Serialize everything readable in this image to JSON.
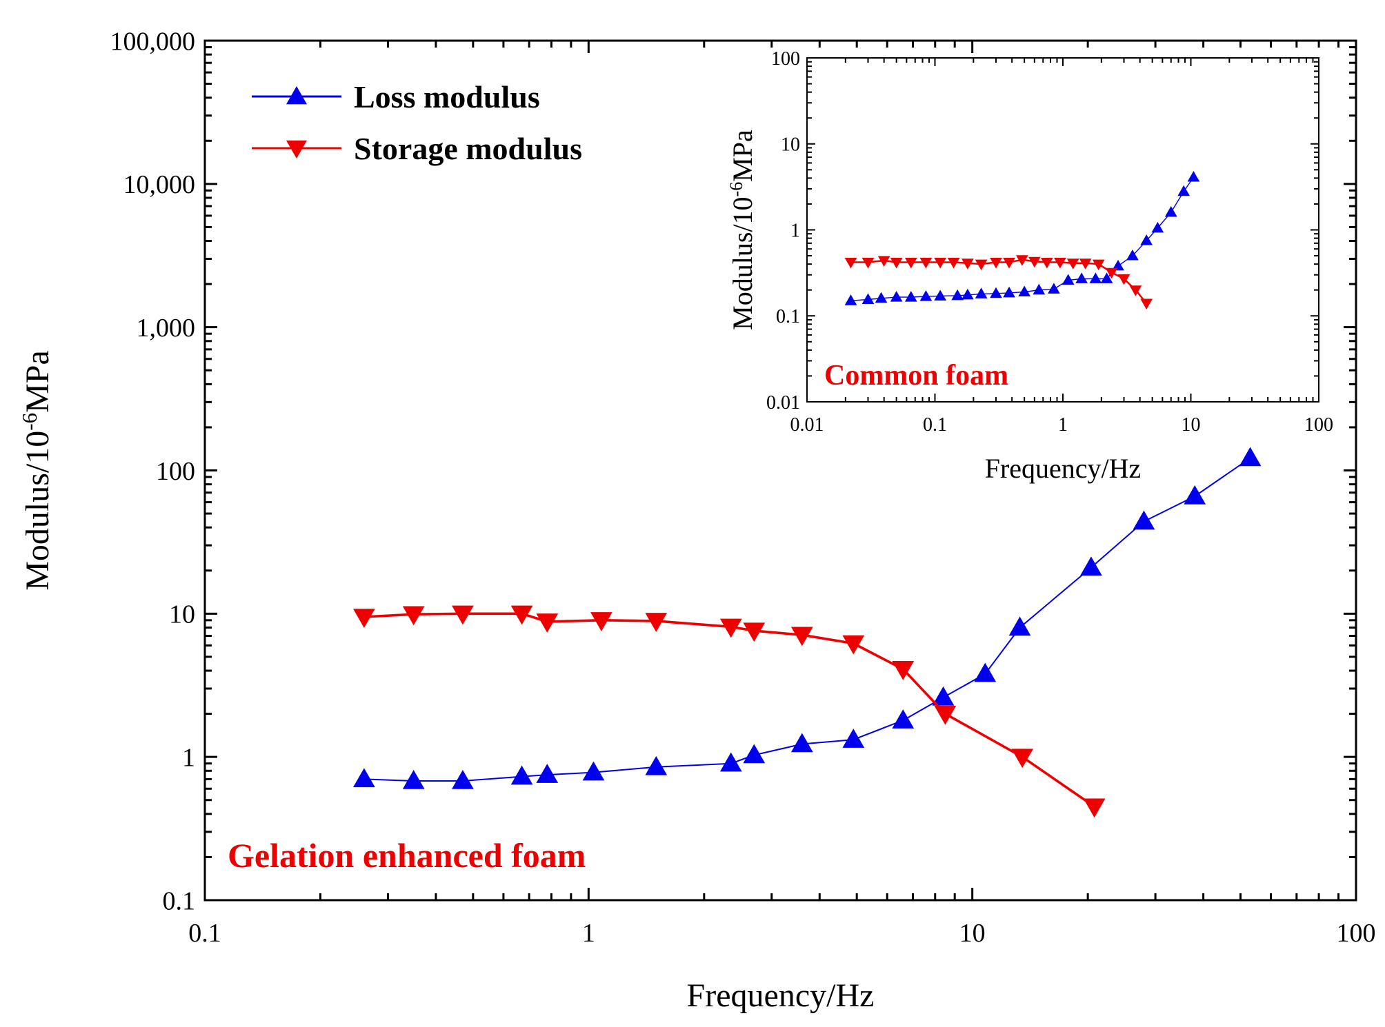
{
  "chart_data": [
    {
      "type": "line",
      "xlabel": "Frequency/Hz",
      "ylabel_main": "Modulus/10",
      "ylabel_sup": "-6",
      "ylabel_unit": "MPa",
      "xscale": "log",
      "yscale": "log",
      "xlim": [
        0.1,
        100
      ],
      "ylim": [
        0.1,
        100000
      ],
      "x_ticks": [
        0.1,
        1,
        10,
        100
      ],
      "x_tick_labels": [
        "0.1",
        "1",
        "10",
        "100"
      ],
      "y_ticks": [
        0.1,
        1,
        10,
        100,
        1000,
        10000,
        100000
      ],
      "y_tick_labels": [
        "0.1",
        "1",
        "10",
        "100",
        "1,000",
        "10,000",
        "100,000"
      ],
      "annotation": "Gelation enhanced foam",
      "legend_position": "top-left",
      "grid": false,
      "series": [
        {
          "name": "Loss modulus",
          "color": "#0000ee",
          "marker": "triangle-up",
          "x": [
            0.26,
            0.35,
            0.47,
            0.67,
            0.78,
            1.03,
            1.5,
            2.35,
            2.7,
            3.6,
            4.9,
            6.6,
            8.4,
            10.8,
            13.3,
            20.4,
            28.0,
            38.0,
            53.0
          ],
          "y": [
            0.7,
            0.68,
            0.68,
            0.73,
            0.75,
            0.78,
            0.85,
            0.9,
            1.03,
            1.23,
            1.32,
            1.8,
            2.6,
            3.8,
            8.0,
            21.0,
            44.0,
            66.0,
            122.0
          ]
        },
        {
          "name": "Storage modulus",
          "color": "#ee0000",
          "marker": "triangle-down",
          "x": [
            0.26,
            0.35,
            0.47,
            0.67,
            0.78,
            1.08,
            1.5,
            2.35,
            2.7,
            3.6,
            4.9,
            6.6,
            8.5,
            13.5,
            20.8
          ],
          "y": [
            9.5,
            9.9,
            10.0,
            10.0,
            8.8,
            9.0,
            8.9,
            8.1,
            7.6,
            7.1,
            6.2,
            4.1,
            2.0,
            1.0,
            0.45
          ]
        }
      ]
    },
    {
      "type": "line",
      "xlabel": "Frequency/Hz",
      "ylabel_main": "Modulus/10",
      "ylabel_sup": "-6",
      "ylabel_unit": "MPa",
      "xscale": "log",
      "yscale": "log",
      "xlim": [
        0.01,
        100
      ],
      "ylim": [
        0.01,
        100
      ],
      "x_ticks": [
        0.01,
        0.1,
        1,
        10,
        100
      ],
      "x_tick_labels": [
        "0.01",
        "0.1",
        "1",
        "10",
        "100"
      ],
      "y_ticks": [
        0.01,
        0.1,
        1,
        10,
        100
      ],
      "y_tick_labels": [
        "0.01",
        "0.1",
        "1",
        "10",
        "100"
      ],
      "annotation": "Common foam",
      "grid": false,
      "series": [
        {
          "color": "#0000ee",
          "marker": "triangle-up",
          "x": [
            0.022,
            0.03,
            0.038,
            0.05,
            0.065,
            0.085,
            0.11,
            0.15,
            0.18,
            0.23,
            0.3,
            0.38,
            0.5,
            0.65,
            0.85,
            1.1,
            1.4,
            1.8,
            2.2,
            2.7,
            3.5,
            4.5,
            5.5,
            7.0,
            8.8,
            10.5
          ],
          "y": [
            0.15,
            0.155,
            0.16,
            0.165,
            0.165,
            0.168,
            0.17,
            0.172,
            0.175,
            0.18,
            0.182,
            0.185,
            0.19,
            0.2,
            0.205,
            0.26,
            0.27,
            0.27,
            0.27,
            0.38,
            0.5,
            0.75,
            1.05,
            1.6,
            2.8,
            4.1
          ]
        },
        {
          "color": "#ee0000",
          "marker": "triangle-down",
          "x": [
            0.022,
            0.03,
            0.04,
            0.05,
            0.065,
            0.085,
            0.11,
            0.14,
            0.18,
            0.23,
            0.3,
            0.38,
            0.48,
            0.6,
            0.75,
            0.95,
            1.2,
            1.5,
            1.9,
            2.4,
            3.0,
            3.7,
            4.5
          ],
          "y": [
            0.42,
            0.42,
            0.44,
            0.42,
            0.42,
            0.42,
            0.42,
            0.42,
            0.41,
            0.4,
            0.42,
            0.42,
            0.45,
            0.43,
            0.42,
            0.42,
            0.41,
            0.41,
            0.4,
            0.32,
            0.27,
            0.2,
            0.14
          ]
        }
      ]
    }
  ]
}
